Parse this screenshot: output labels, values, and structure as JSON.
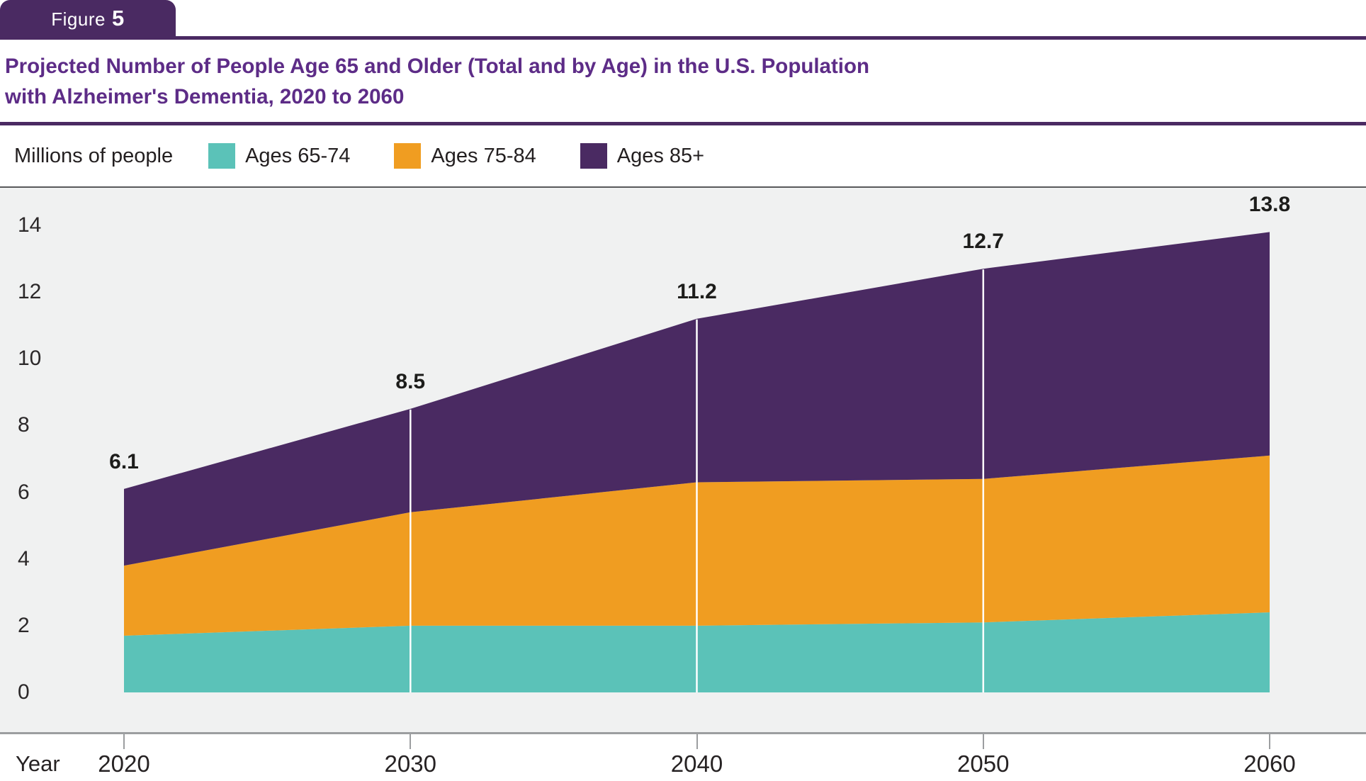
{
  "figure_label": {
    "prefix": "Figure",
    "number": "5"
  },
  "title": {
    "line1": "Projected Number of People Age 65 and Older (Total and by Age) in the U.S. Population",
    "line2": "with Alzheimer's Dementia, 2020 to 2060"
  },
  "legend": {
    "axis_units_label": "Millions of people"
  },
  "x_axis": {
    "label": "Year"
  },
  "y_axis": {
    "ticks": [
      0,
      2,
      4,
      6,
      8,
      10,
      12,
      14
    ]
  },
  "colors": {
    "accent_purple": "#4a2a62",
    "title_purple": "#5d2c87",
    "teal": "#5bc2b8",
    "orange": "#f09d21",
    "plot_background": "#f0f1f1",
    "separator_white": "#ffffff"
  },
  "chart_data": {
    "type": "area",
    "stacked": true,
    "title": "Projected Number of People Age 65 and Older (Total and by Age) in the U.S. Population with Alzheimer's Dementia, 2020 to 2060",
    "xlabel": "Year",
    "ylabel": "Millions of people",
    "x": [
      2020,
      2030,
      2040,
      2050,
      2060
    ],
    "series": [
      {
        "name": "Ages 65-74",
        "color": "#5bc2b8",
        "values": [
          1.7,
          2.0,
          2.0,
          2.1,
          2.4
        ]
      },
      {
        "name": "Ages 75-84",
        "color": "#f09d21",
        "values": [
          2.1,
          3.4,
          4.3,
          4.3,
          4.7
        ]
      },
      {
        "name": "Ages 85+",
        "color": "#4a2a62",
        "values": [
          2.3,
          3.1,
          4.9,
          6.3,
          6.7
        ]
      }
    ],
    "totals": [
      6.1,
      8.5,
      11.2,
      12.7,
      13.8
    ],
    "total_labels": [
      "6.1",
      "8.5",
      "11.2",
      "12.7",
      "13.8"
    ],
    "ylim": [
      0,
      14
    ],
    "grid": "white vertical separator lines at 2030, 2040, 2050",
    "legend_position": "top row, left, after units label"
  }
}
